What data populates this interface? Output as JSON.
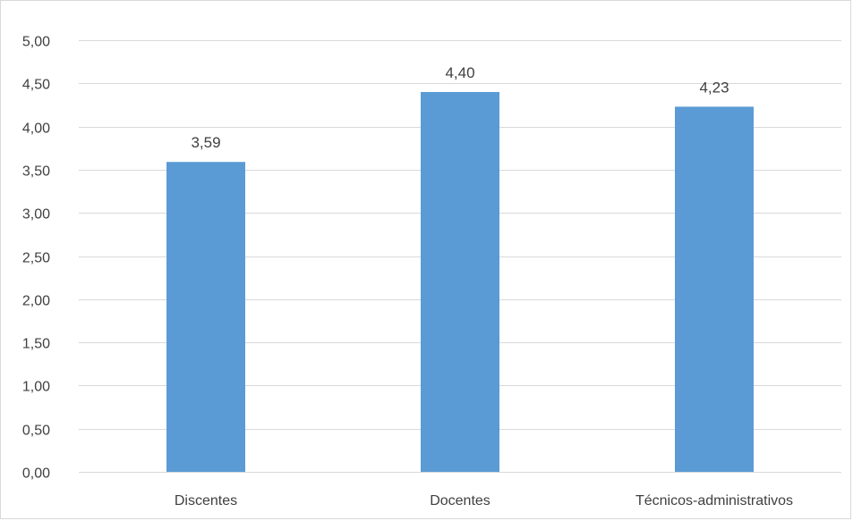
{
  "chart_data": {
    "type": "bar",
    "categories": [
      "Discentes",
      "Docentes",
      "Técnicos-administrativos"
    ],
    "values": [
      3.59,
      4.4,
      4.23
    ],
    "data_labels": [
      "3,59",
      "4,40",
      "4,23"
    ],
    "title": "",
    "xlabel": "",
    "ylabel": "",
    "ylim": [
      0,
      5
    ],
    "y_ticks": [
      0,
      0.5,
      1,
      1.5,
      2,
      2.5,
      3,
      3.5,
      4,
      4.5,
      5
    ],
    "y_tick_labels": [
      "0,00",
      "0,50",
      "1,00",
      "1,50",
      "2,00",
      "2,50",
      "3,00",
      "3,50",
      "4,00",
      "4,50",
      "5,00"
    ],
    "grid": true,
    "legend": "none",
    "bar_color": "#5b9bd5",
    "grid_color": "#d9d9d9",
    "text_color": "#404040"
  }
}
